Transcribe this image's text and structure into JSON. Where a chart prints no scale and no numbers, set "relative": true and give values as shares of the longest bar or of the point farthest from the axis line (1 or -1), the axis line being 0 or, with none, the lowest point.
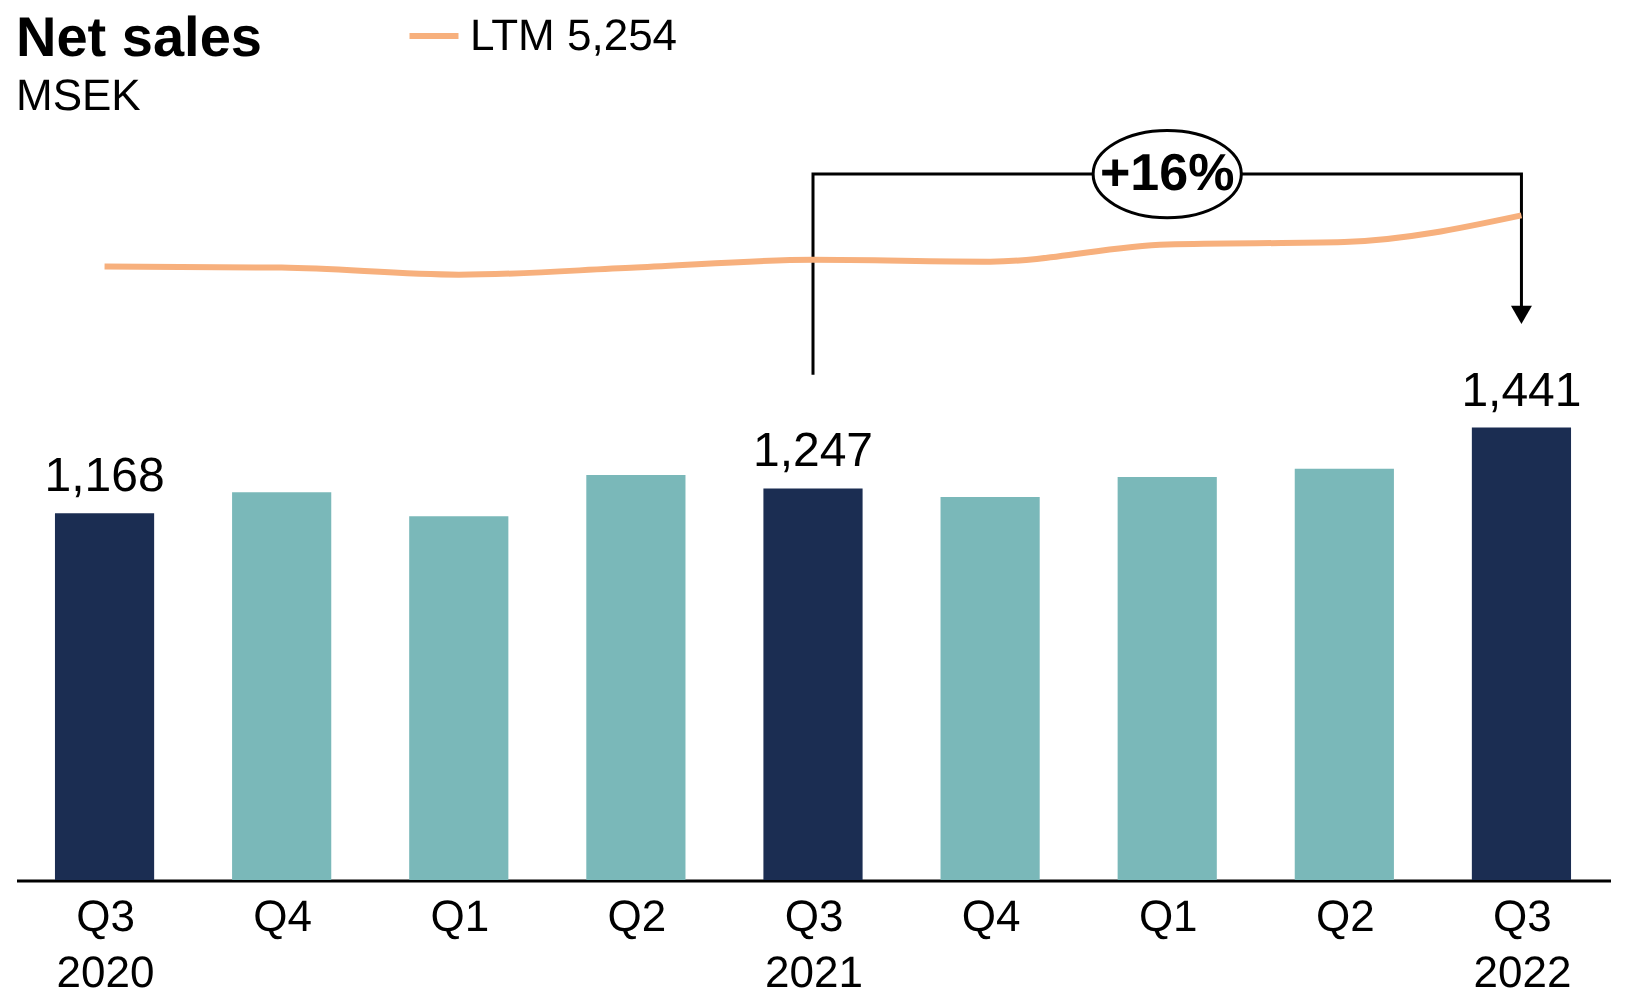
{
  "chart_data": [
    {
      "type": "bar",
      "categories": [
        "Q3\n2020",
        "Q4",
        "Q1",
        "Q2",
        "Q3\n2021",
        "Q4",
        "Q1",
        "Q2",
        "Q3\n2022"
      ],
      "values": [
        1168,
        1235,
        1158,
        1290,
        1247,
        1220,
        1283,
        1310,
        1441
      ],
      "colors": [
        "#1b2d52",
        "#7ab8b9",
        "#7ab8b9",
        "#7ab8b9",
        "#1b2d52",
        "#7ab8b9",
        "#7ab8b9",
        "#7ab8b9",
        "#1b2d52"
      ],
      "value_labels": [
        "1,168",
        null,
        null,
        null,
        "1,247",
        null,
        null,
        null,
        "1,441"
      ],
      "annotations": [
        "+16%"
      ],
      "grid": false
    },
    {
      "type": "line",
      "title": "Net sales",
      "subtitle": "MSEK",
      "relative": true,
      "legend": "top",
      "marker": "none",
      "line_style": "solid",
      "series": [
        {
          "name": "LTM 5,254",
          "color": "#f7b07d",
          "values": [
            0.14,
            0.12,
            0,
            0.12,
            0.25,
            0.22,
            0.51,
            0.55,
            1
          ]
        }
      ]
    }
  ]
}
